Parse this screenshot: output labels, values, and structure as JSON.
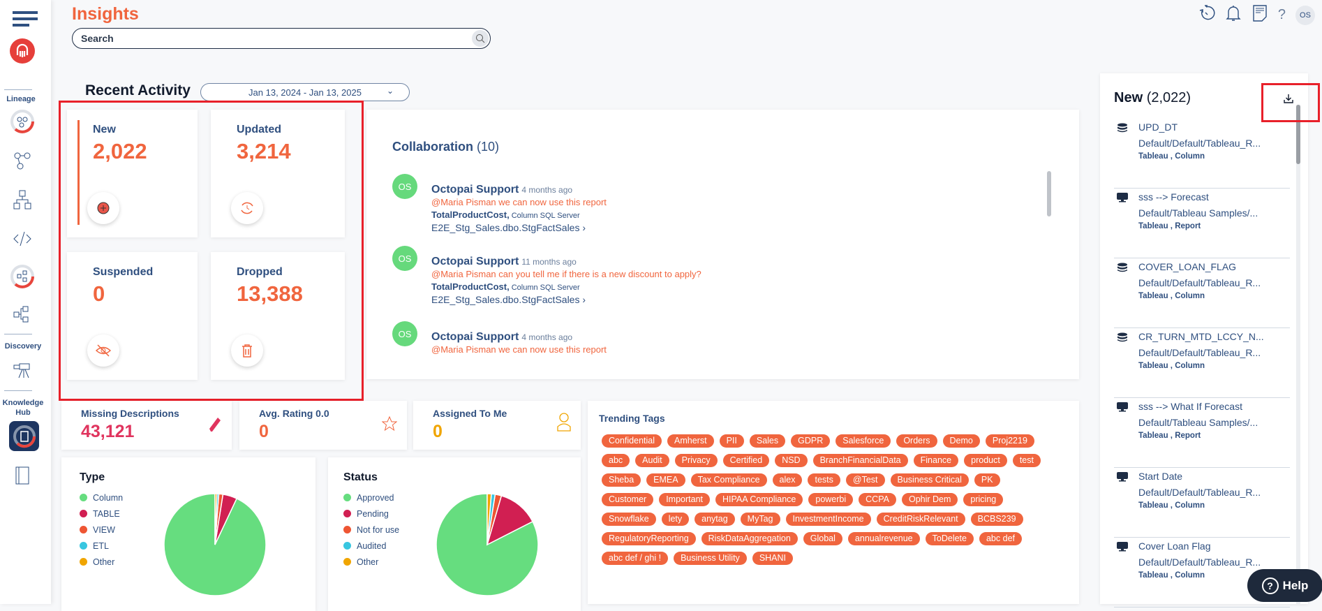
{
  "app": {
    "title": "Insights"
  },
  "search": {
    "placeholder": "Search"
  },
  "sidebar": {
    "sections": [
      "Lineage",
      "Discovery",
      "Knowledge Hub"
    ]
  },
  "header": {
    "avatar_initials": "OS"
  },
  "recent_activity": {
    "title": "Recent Activity",
    "date_range": "Jan 13, 2024 - Jan 13, 2025",
    "cards": [
      {
        "label": "New",
        "value": "2,022"
      },
      {
        "label": "Updated",
        "value": "3,214"
      },
      {
        "label": "Suspended",
        "value": "0"
      },
      {
        "label": "Dropped",
        "value": "13,388"
      }
    ]
  },
  "collaboration": {
    "title": "Collaboration",
    "count": "(10)",
    "comments": [
      {
        "initials": "OS",
        "author": "Octopai Support",
        "time": "4 months ago",
        "message": "@Maria Pisman we can now use this report",
        "object": "TotalProductCost,",
        "type": "Column",
        "source": "SQL Server",
        "path": "E2E_Stg_Sales.dbo.StgFactSales"
      },
      {
        "initials": "OS",
        "author": "Octopai Support",
        "time": "11 months ago",
        "message": "@Maria Pisman can you tell me if there is a new discount to apply?",
        "object": "TotalProductCost,",
        "type": "Column",
        "source": "SQL Server",
        "path": "E2E_Stg_Sales.dbo.StgFactSales"
      },
      {
        "initials": "OS",
        "author": "Octopai Support",
        "time": "4 months ago",
        "message": "@Maria Pisman we can now use this report"
      }
    ]
  },
  "metrics": [
    {
      "label": "Missing Descriptions",
      "value": "43,121",
      "color": "#e0345e"
    },
    {
      "label": "Avg. Rating 0.0",
      "value": "0",
      "color": "#f0653e"
    },
    {
      "label": "Assigned To Me",
      "value": "0",
      "color": "#f0a500"
    }
  ],
  "trending_tags": {
    "title": "Trending Tags",
    "tags": [
      "Confidential",
      "Amherst",
      "PII",
      "Sales",
      "GDPR",
      "Salesforce",
      "Orders",
      "Demo",
      "Proj2219",
      "abc",
      "Audit",
      "Privacy",
      "Certified",
      "NSD",
      "BranchFinancialData",
      "Finance",
      "product",
      "test",
      "Sheba",
      "EMEA",
      "Tax Compliance",
      "alex",
      "tests",
      "@Test",
      "Business Critical",
      "PK",
      "Customer",
      "Important",
      "HIPAA Compliance",
      "powerbi",
      "CCPA",
      "Ophir Dem",
      "pricing",
      "Snowflake",
      "lety",
      "anytag",
      "MyTag",
      "InvestmentIncome",
      "CreditRiskRelevant",
      "BCBS239",
      "RegulatoryReporting",
      "RiskDataAggregation",
      "Global",
      "annualrevenue",
      "ToDelete",
      "abc def",
      "abc def / ghi !",
      "Business Utility",
      "SHANI"
    ]
  },
  "chart_data": [
    {
      "type": "pie",
      "title": "Type",
      "legend": "left",
      "labels": [
        "Column",
        "TABLE",
        "VIEW",
        "ETL",
        "Other"
      ],
      "values": [
        93,
        4.5,
        1.3,
        0.6,
        0.6
      ],
      "colors": [
        "#66dd7f",
        "#d11f52",
        "#ee5533",
        "#38c6e0",
        "#f0a500"
      ]
    },
    {
      "type": "pie",
      "title": "Status",
      "legend": "left",
      "labels": [
        "Approved",
        "Pending",
        "Not for use",
        "Audited",
        "Other"
      ],
      "values": [
        82.5,
        13,
        2,
        1.2,
        1.3
      ],
      "colors": [
        "#66dd7f",
        "#d11f52",
        "#ee5533",
        "#38c6e0",
        "#f0a500"
      ]
    }
  ],
  "new_panel": {
    "title": "New",
    "count": "(2,022)",
    "items": [
      {
        "icon": "database",
        "name": "UPD_DT",
        "path": "Default/Default/Tableau_R...",
        "meta": "Tableau , Column"
      },
      {
        "icon": "monitor",
        "name": "sss --> Forecast",
        "path": "Default/Tableau Samples/...",
        "meta": "Tableau , Report"
      },
      {
        "icon": "database",
        "name": "COVER_LOAN_FLAG",
        "path": "Default/Default/Tableau_R...",
        "meta": "Tableau , Column"
      },
      {
        "icon": "database",
        "name": "CR_TURN_MTD_LCCY_N...",
        "path": "Default/Default/Tableau_R...",
        "meta": "Tableau , Column"
      },
      {
        "icon": "monitor",
        "name": "sss --> What If Forecast",
        "path": "Default/Tableau Samples/...",
        "meta": "Tableau , Report"
      },
      {
        "icon": "monitor",
        "name": "Start Date",
        "path": "Default/Default/Tableau_R...",
        "meta": "Tableau , Column"
      },
      {
        "icon": "monitor",
        "name": "Cover Loan Flag",
        "path": "Default/Default/Tableau_R...",
        "meta": "Tableau , Column"
      }
    ]
  },
  "help": {
    "label": "Help"
  },
  "colors": {
    "accent": "#f0653e",
    "navy": "#2f4f7f",
    "highlight": "#e8202a"
  }
}
